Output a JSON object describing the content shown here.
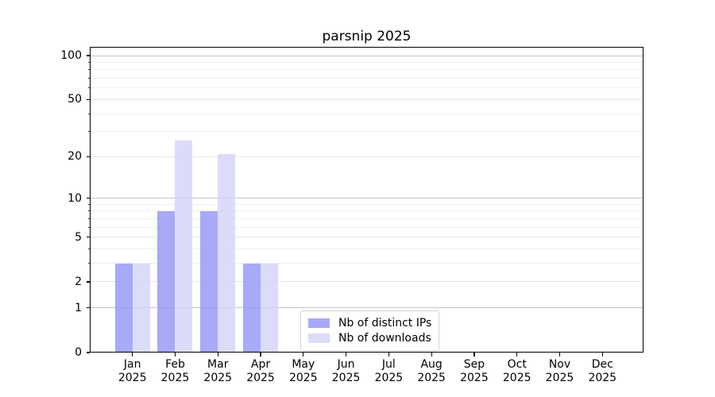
{
  "chart_data": {
    "type": "bar",
    "title": "parsnip 2025",
    "categories": [
      "Jan 2025",
      "Feb 2025",
      "Mar 2025",
      "Apr 2025",
      "May 2025",
      "Jun 2025",
      "Jul 2025",
      "Aug 2025",
      "Sep 2025",
      "Oct 2025",
      "Nov 2025",
      "Dec 2025"
    ],
    "x_months": [
      "Jan",
      "Feb",
      "Mar",
      "Apr",
      "May",
      "Jun",
      "Jul",
      "Aug",
      "Sep",
      "Oct",
      "Nov",
      "Dec"
    ],
    "x_year": "2025",
    "series": [
      {
        "name": "Nb of distinct IPs",
        "values": [
          3,
          8,
          8,
          3,
          0,
          0,
          0,
          0,
          0,
          0,
          0,
          0
        ]
      },
      {
        "name": "Nb of downloads",
        "values": [
          3,
          26,
          21,
          3,
          0,
          0,
          0,
          0,
          0,
          0,
          0,
          0
        ]
      }
    ],
    "xlabel": "",
    "ylabel": "",
    "y_axis": {
      "scale": "log1p",
      "tick_values": [
        0,
        1,
        2,
        5,
        10,
        20,
        50,
        100
      ],
      "tick_labels": [
        "0",
        "1",
        "2",
        "5",
        "10",
        "20",
        "50",
        "100"
      ],
      "decade_gridlines": [
        1,
        10,
        100
      ],
      "minor_gridlines": [
        3,
        4,
        6,
        7,
        8,
        9,
        30,
        40,
        60,
        70,
        80,
        90
      ],
      "ylim": [
        0,
        116
      ]
    },
    "grid": "horizontal",
    "legend_position": "lower-center",
    "colors": {
      "bar_distinct_ips": "rgba(146,148,245,0.8)",
      "bar_downloads": "rgba(211,211,248,0.8)",
      "grid_decade": "#c6c6c6",
      "grid_tick": "#e7e7e7",
      "grid_minor": "#efefef",
      "axis": "#000000",
      "legend_border": "#d2d2d2"
    }
  }
}
